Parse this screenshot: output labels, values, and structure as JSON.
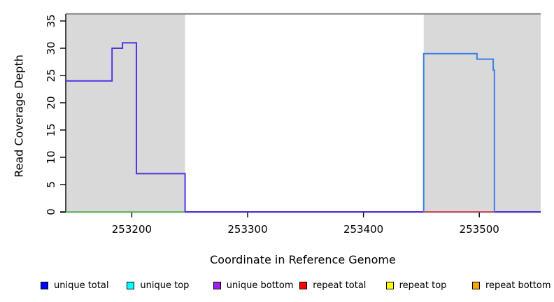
{
  "chart_data": {
    "type": "line",
    "title": "",
    "xlabel": "Coordinate in Reference Genome",
    "ylabel": "Read Coverage Depth",
    "xlim": [
      253143,
      253553
    ],
    "ylim": [
      0,
      36.5
    ],
    "grid": false,
    "legend_position": "bottom",
    "x_ticks": [
      253200,
      253300,
      253400,
      253500
    ],
    "x_tick_labels": [
      "253200",
      "253300",
      "253400",
      "253500"
    ],
    "y_ticks": [
      0,
      5,
      10,
      15,
      20,
      25,
      30,
      35
    ],
    "y_tick_labels": [
      "0",
      "5",
      "10",
      "15",
      "20",
      "25",
      "30",
      "35"
    ],
    "top_boundary_line": {
      "y": 36.3,
      "color": "#8a8a8a"
    },
    "shaded_regions": [
      {
        "name": "repeat-region-left",
        "x_start": 253143,
        "x_end": 253246,
        "color": "#d9d9d9"
      },
      {
        "name": "repeat-region-right",
        "x_start": 253452,
        "x_end": 253553,
        "color": "#d9d9d9"
      }
    ],
    "series": [
      {
        "name": "baseline-left-green",
        "color": "#68c068",
        "points": [
          [
            253143,
            0
          ],
          [
            253246,
            0
          ]
        ]
      },
      {
        "name": "unique-coverage-left-violet",
        "color": "#5433e2",
        "points": [
          [
            253143,
            24
          ],
          [
            253183,
            24
          ],
          [
            253183,
            30
          ],
          [
            253192,
            30
          ],
          [
            253192,
            31
          ],
          [
            253204,
            31
          ],
          [
            253204,
            7
          ],
          [
            253246,
            7
          ],
          [
            253246,
            0
          ],
          [
            253553,
            0
          ]
        ]
      },
      {
        "name": "repeat-baseline-red",
        "color": "#d14f68",
        "points": [
          [
            253452,
            0
          ],
          [
            253513,
            0
          ]
        ]
      },
      {
        "name": "unique-coverage-right-blue",
        "color": "#3d7ee8",
        "points": [
          [
            253452,
            0
          ],
          [
            253452,
            29
          ],
          [
            253498,
            29
          ],
          [
            253498,
            28
          ],
          [
            253512,
            28
          ],
          [
            253512,
            26
          ],
          [
            253513,
            26
          ],
          [
            253513,
            0
          ]
        ]
      }
    ],
    "legend": [
      {
        "label": "unique total",
        "color": "#0000ff"
      },
      {
        "label": "unique top",
        "color": "#00ffff"
      },
      {
        "label": "unique bottom",
        "color": "#a020f0"
      },
      {
        "label": "repeat total",
        "color": "#ff0000"
      },
      {
        "label": "repeat top",
        "color": "#ffff00"
      },
      {
        "label": "repeat bottom",
        "color": "#ffa500"
      }
    ],
    "colors": {
      "axis": "#000000",
      "shade": "#d9d9d9",
      "background": "#ffffff"
    }
  }
}
